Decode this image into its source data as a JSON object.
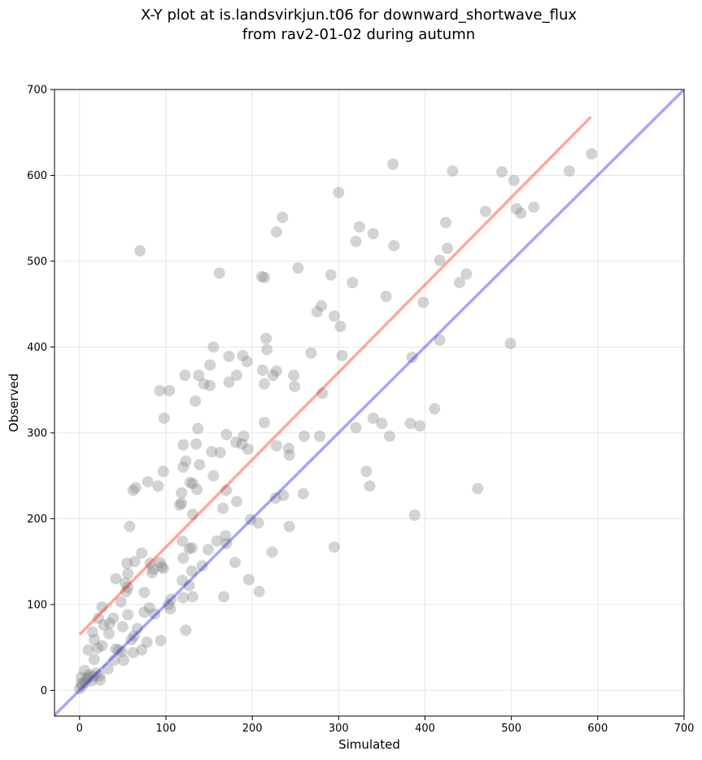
{
  "chart_data": {
    "type": "scatter",
    "title": [
      "X-Y plot at is.landsvirkjun.t06 for downward_shortwave_flux",
      "from rav2-01-02 during autumn"
    ],
    "x_label": "Simulated",
    "y_label": "Observed",
    "xlim": [
      -29,
      700
    ],
    "ylim": [
      -30,
      700
    ],
    "xticks": [
      0,
      100,
      200,
      300,
      400,
      500,
      600,
      700
    ],
    "yticks": [
      0,
      100,
      200,
      300,
      400,
      500,
      600,
      700
    ],
    "grid": true,
    "color": "#808080",
    "alpha": 0.35,
    "x": [
      70,
      162,
      300,
      363,
      432,
      489,
      503,
      567,
      593,
      526,
      506,
      511,
      470,
      424,
      324,
      340,
      235,
      228,
      320,
      364,
      426,
      417,
      253,
      291,
      448,
      440,
      316,
      211,
      214,
      355,
      398,
      280,
      275,
      295,
      302,
      216,
      417,
      499,
      155,
      217,
      268,
      304,
      173,
      189,
      385,
      194,
      151,
      122,
      138,
      212,
      228,
      224,
      248,
      182,
      144,
      151,
      173,
      214,
      249,
      93,
      104,
      281,
      134,
      411,
      98,
      340,
      350,
      383,
      214,
      137,
      320,
      394,
      170,
      190,
      260,
      278,
      359,
      120,
      135,
      188,
      181,
      195,
      228,
      242,
      243,
      153,
      163,
      123,
      120,
      139,
      332,
      97,
      128,
      131,
      155,
      79,
      91,
      336,
      136,
      62,
      65,
      170,
      118,
      259,
      236,
      461,
      118,
      116,
      182,
      227,
      166,
      131,
      388,
      198,
      207,
      58,
      243,
      169,
      159,
      119,
      170,
      295,
      127,
      130,
      149,
      223,
      72,
      120,
      64,
      180,
      55,
      82,
      93,
      142,
      95,
      97,
      85,
      84,
      130,
      56,
      42,
      119,
      196,
      53,
      56,
      127,
      75,
      54,
      208,
      120,
      131,
      167,
      48,
      106,
      103,
      26,
      81,
      105,
      75,
      87,
      56,
      22,
      39,
      28,
      35,
      15,
      50,
      67,
      123,
      34,
      63,
      60,
      17,
      94,
      78,
      26,
      21,
      42,
      45,
      10,
      72,
      49,
      62,
      40,
      51,
      17,
      33,
      6,
      19,
      11,
      23,
      2,
      8,
      24,
      14,
      2,
      6,
      3,
      0,
      10,
      16
    ],
    "values": [
      512,
      486,
      580,
      613,
      605,
      604,
      594,
      605,
      625,
      563,
      561,
      556,
      558,
      545,
      540,
      532,
      551,
      534,
      523,
      518,
      515,
      501,
      492,
      484,
      485,
      475,
      475,
      482,
      481,
      459,
      452,
      448,
      441,
      436,
      424,
      410,
      408,
      404,
      400,
      397,
      393,
      390,
      389,
      390,
      388,
      383,
      379,
      367,
      367,
      373,
      372,
      367,
      367,
      367,
      357,
      355,
      359,
      357,
      354,
      349,
      349,
      346,
      337,
      328,
      317,
      317,
      311,
      311,
      312,
      305,
      306,
      308,
      298,
      296,
      296,
      296,
      296,
      286,
      287,
      287,
      289,
      281,
      285,
      282,
      274,
      278,
      277,
      267,
      260,
      263,
      255,
      255,
      242,
      241,
      250,
      243,
      238,
      238,
      234,
      233,
      236,
      233,
      230,
      229,
      227,
      235,
      218,
      216,
      220,
      224,
      212,
      205,
      204,
      199,
      195,
      191,
      191,
      180,
      174,
      174,
      171,
      167,
      165,
      166,
      164,
      161,
      160,
      154,
      150,
      149,
      148,
      148,
      149,
      145,
      144,
      142,
      141,
      137,
      139,
      136,
      130,
      128,
      129,
      125,
      120,
      122,
      114,
      115,
      115,
      108,
      109,
      109,
      103,
      106,
      100,
      97,
      96,
      95,
      91,
      89,
      88,
      84,
      84,
      76,
      78,
      68,
      74,
      72,
      70,
      66,
      63,
      59,
      59,
      58,
      56,
      52,
      49,
      48,
      47,
      47,
      47,
      45,
      44,
      35,
      35,
      36,
      25,
      23,
      20,
      18,
      17,
      15,
      13,
      12,
      11,
      8,
      9,
      5,
      2,
      15,
      16
    ],
    "lines": [
      {
        "color": "#ff0000",
        "alpha": 0.35,
        "x": [
          0,
          592
        ],
        "y": [
          65,
          668
        ]
      },
      {
        "color": "#0000ff",
        "alpha": 0.35,
        "x": [
          -29,
          700
        ],
        "y": [
          -29,
          700
        ]
      }
    ]
  }
}
